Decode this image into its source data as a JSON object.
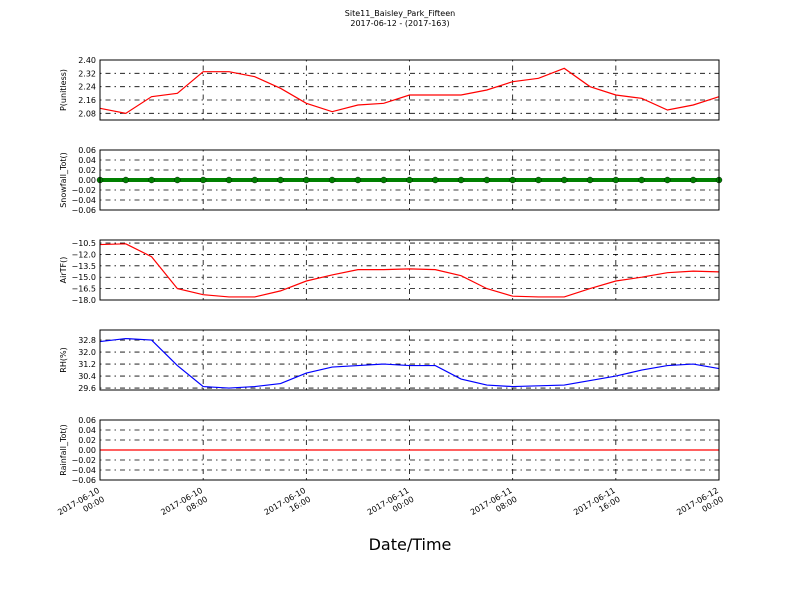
{
  "chart_data": [
    {
      "type": "line",
      "title": "Site11_Baisley_Park_Fifteen",
      "subtitle": "2017-06-12 - (2017-163)",
      "ylabel": "P(unitless)",
      "color": "#ff0000",
      "x": [
        "2017-06-10 00:00",
        "2017-06-10 02:00",
        "2017-06-10 04:00",
        "2017-06-10 06:00",
        "2017-06-10 08:00",
        "2017-06-10 10:00",
        "2017-06-10 12:00",
        "2017-06-10 14:00",
        "2017-06-10 16:00",
        "2017-06-10 18:00",
        "2017-06-10 20:00",
        "2017-06-10 22:00",
        "2017-06-11 00:00",
        "2017-06-11 02:00",
        "2017-06-11 04:00",
        "2017-06-11 06:00",
        "2017-06-11 08:00",
        "2017-06-11 10:00",
        "2017-06-11 12:00",
        "2017-06-11 14:00",
        "2017-06-11 16:00",
        "2017-06-11 18:00",
        "2017-06-11 20:00",
        "2017-06-11 22:00",
        "2017-06-12 00:00"
      ],
      "values": [
        2.11,
        2.08,
        2.18,
        2.2,
        2.33,
        2.33,
        2.3,
        2.23,
        2.14,
        2.09,
        2.13,
        2.14,
        2.19,
        2.19,
        2.19,
        2.22,
        2.27,
        2.29,
        2.35,
        2.24,
        2.19,
        2.17,
        2.1,
        2.13,
        2.18
      ],
      "ylim": [
        2.04,
        2.4
      ],
      "yticks": [
        2.08,
        2.16,
        2.24,
        2.32,
        {
          "value": 2.4,
          "label": "2.40"
        }
      ],
      "grid": true
    },
    {
      "type": "line",
      "ylabel": "Snowfall_Tot()",
      "color": "#008000",
      "marker": "o",
      "x": [
        "2017-06-10 00:00",
        "2017-06-10 02:00",
        "2017-06-10 04:00",
        "2017-06-10 06:00",
        "2017-06-10 08:00",
        "2017-06-10 10:00",
        "2017-06-10 12:00",
        "2017-06-10 14:00",
        "2017-06-10 16:00",
        "2017-06-10 18:00",
        "2017-06-10 20:00",
        "2017-06-10 22:00",
        "2017-06-11 00:00",
        "2017-06-11 02:00",
        "2017-06-11 04:00",
        "2017-06-11 06:00",
        "2017-06-11 08:00",
        "2017-06-11 10:00",
        "2017-06-11 12:00",
        "2017-06-11 14:00",
        "2017-06-11 16:00",
        "2017-06-11 18:00",
        "2017-06-11 20:00",
        "2017-06-11 22:00",
        "2017-06-12 00:00"
      ],
      "values": [
        0,
        0,
        0,
        0,
        0,
        0,
        0,
        0,
        0,
        0,
        0,
        0,
        0,
        0,
        0,
        0,
        0,
        0,
        0,
        0,
        0,
        0,
        0,
        0,
        0
      ],
      "ylim": [
        -0.06,
        0.06
      ],
      "yticks": [
        {
          "value": -0.06,
          "label": "−0.06"
        },
        {
          "value": -0.04,
          "label": "−0.04"
        },
        {
          "value": -0.02,
          "label": "−0.02"
        },
        {
          "value": 0,
          "label": "0.00"
        },
        0.02,
        0.04,
        0.06
      ],
      "grid": true
    },
    {
      "type": "line",
      "ylabel": "AirTF()",
      "color": "#ff0000",
      "x": [
        "2017-06-10 00:00",
        "2017-06-10 02:00",
        "2017-06-10 04:00",
        "2017-06-10 06:00",
        "2017-06-10 08:00",
        "2017-06-10 10:00",
        "2017-06-10 12:00",
        "2017-06-10 14:00",
        "2017-06-10 16:00",
        "2017-06-10 18:00",
        "2017-06-10 20:00",
        "2017-06-10 22:00",
        "2017-06-11 00:00",
        "2017-06-11 02:00",
        "2017-06-11 04:00",
        "2017-06-11 06:00",
        "2017-06-11 08:00",
        "2017-06-11 10:00",
        "2017-06-11 12:00",
        "2017-06-11 14:00",
        "2017-06-11 16:00",
        "2017-06-11 18:00",
        "2017-06-11 20:00",
        "2017-06-11 22:00",
        "2017-06-12 00:00"
      ],
      "values": [
        -10.7,
        -10.6,
        -12.3,
        -16.5,
        -17.3,
        -17.6,
        -17.6,
        -16.8,
        -15.5,
        -14.7,
        -14.0,
        -14.0,
        -13.9,
        -14.0,
        -14.8,
        -16.5,
        -17.5,
        -17.6,
        -17.6,
        -16.5,
        -15.5,
        -15.0,
        -14.4,
        -14.2,
        -14.3
      ],
      "ylim": [
        -18.0,
        -10.1
      ],
      "yticks": [
        {
          "value": -18.0,
          "label": "−18.0"
        },
        {
          "value": -16.5,
          "label": "−16.5"
        },
        {
          "value": -15.0,
          "label": "−15.0"
        },
        {
          "value": -13.5,
          "label": "−13.5"
        },
        {
          "value": -12.0,
          "label": "−12.0"
        },
        {
          "value": -10.5,
          "label": "−10.5"
        }
      ],
      "grid": true
    },
    {
      "type": "line",
      "ylabel": "RH(%)",
      "color": "#0000ff",
      "x": [
        "2017-06-10 00:00",
        "2017-06-10 02:00",
        "2017-06-10 04:00",
        "2017-06-10 06:00",
        "2017-06-10 08:00",
        "2017-06-10 10:00",
        "2017-06-10 12:00",
        "2017-06-10 14:00",
        "2017-06-10 16:00",
        "2017-06-10 18:00",
        "2017-06-10 20:00",
        "2017-06-10 22:00",
        "2017-06-11 00:00",
        "2017-06-11 02:00",
        "2017-06-11 04:00",
        "2017-06-11 06:00",
        "2017-06-11 08:00",
        "2017-06-11 10:00",
        "2017-06-11 12:00",
        "2017-06-11 14:00",
        "2017-06-11 16:00",
        "2017-06-11 18:00",
        "2017-06-11 20:00",
        "2017-06-11 22:00",
        "2017-06-12 00:00"
      ],
      "values": [
        32.7,
        32.9,
        32.8,
        31.1,
        29.7,
        29.6,
        29.7,
        29.9,
        30.6,
        31.0,
        31.1,
        31.2,
        31.1,
        31.1,
        30.2,
        29.8,
        29.7,
        29.75,
        29.8,
        30.1,
        30.4,
        30.8,
        31.1,
        31.2,
        30.9
      ],
      "ylim": [
        29.47,
        33.47
      ],
      "yticks": [
        29.6,
        30.4,
        31.2,
        {
          "value": 32.0,
          "label": "32.0"
        },
        32.8
      ],
      "grid": true
    },
    {
      "type": "line",
      "ylabel": "Rainfall_Tot()",
      "xlabel": "Date/Time",
      "color": "#ff0000",
      "x": [
        "2017-06-10 00:00",
        "2017-06-10 02:00",
        "2017-06-10 04:00",
        "2017-06-10 06:00",
        "2017-06-10 08:00",
        "2017-06-10 10:00",
        "2017-06-10 12:00",
        "2017-06-10 14:00",
        "2017-06-10 16:00",
        "2017-06-10 18:00",
        "2017-06-10 20:00",
        "2017-06-10 22:00",
        "2017-06-11 00:00",
        "2017-06-11 02:00",
        "2017-06-11 04:00",
        "2017-06-11 06:00",
        "2017-06-11 08:00",
        "2017-06-11 10:00",
        "2017-06-11 12:00",
        "2017-06-11 14:00",
        "2017-06-11 16:00",
        "2017-06-11 18:00",
        "2017-06-11 20:00",
        "2017-06-11 22:00",
        "2017-06-12 00:00"
      ],
      "values": [
        0,
        0,
        0,
        0,
        0,
        0,
        0,
        0,
        0,
        0,
        0,
        0,
        0,
        0,
        0,
        0,
        0,
        0,
        0,
        0,
        0,
        0,
        0,
        0,
        0
      ],
      "ylim": [
        -0.06,
        0.06
      ],
      "yticks": [
        {
          "value": -0.06,
          "label": "−0.06"
        },
        {
          "value": -0.04,
          "label": "−0.04"
        },
        {
          "value": -0.02,
          "label": "−0.02"
        },
        {
          "value": 0,
          "label": "0.00"
        },
        0.02,
        0.04,
        0.06
      ],
      "grid": true,
      "xlim": [
        "2017-06-10 00:00",
        "2017-06-12 00:00"
      ],
      "xticks": [
        {
          "value": "2017-06-10 00:00",
          "label": "2017-06-10\n00:00"
        },
        {
          "value": "2017-06-10 08:00",
          "label": "2017-06-10\n08:00"
        },
        {
          "value": "2017-06-10 16:00",
          "label": "2017-06-10\n16:00"
        },
        {
          "value": "2017-06-11 00:00",
          "label": "2017-06-11\n00:00"
        },
        {
          "value": "2017-06-11 08:00",
          "label": "2017-06-11\n08:00"
        },
        {
          "value": "2017-06-11 16:00",
          "label": "2017-06-11\n16:00"
        },
        {
          "value": "2017-06-12 00:00",
          "label": "2017-06-12\n00:00"
        }
      ]
    }
  ]
}
